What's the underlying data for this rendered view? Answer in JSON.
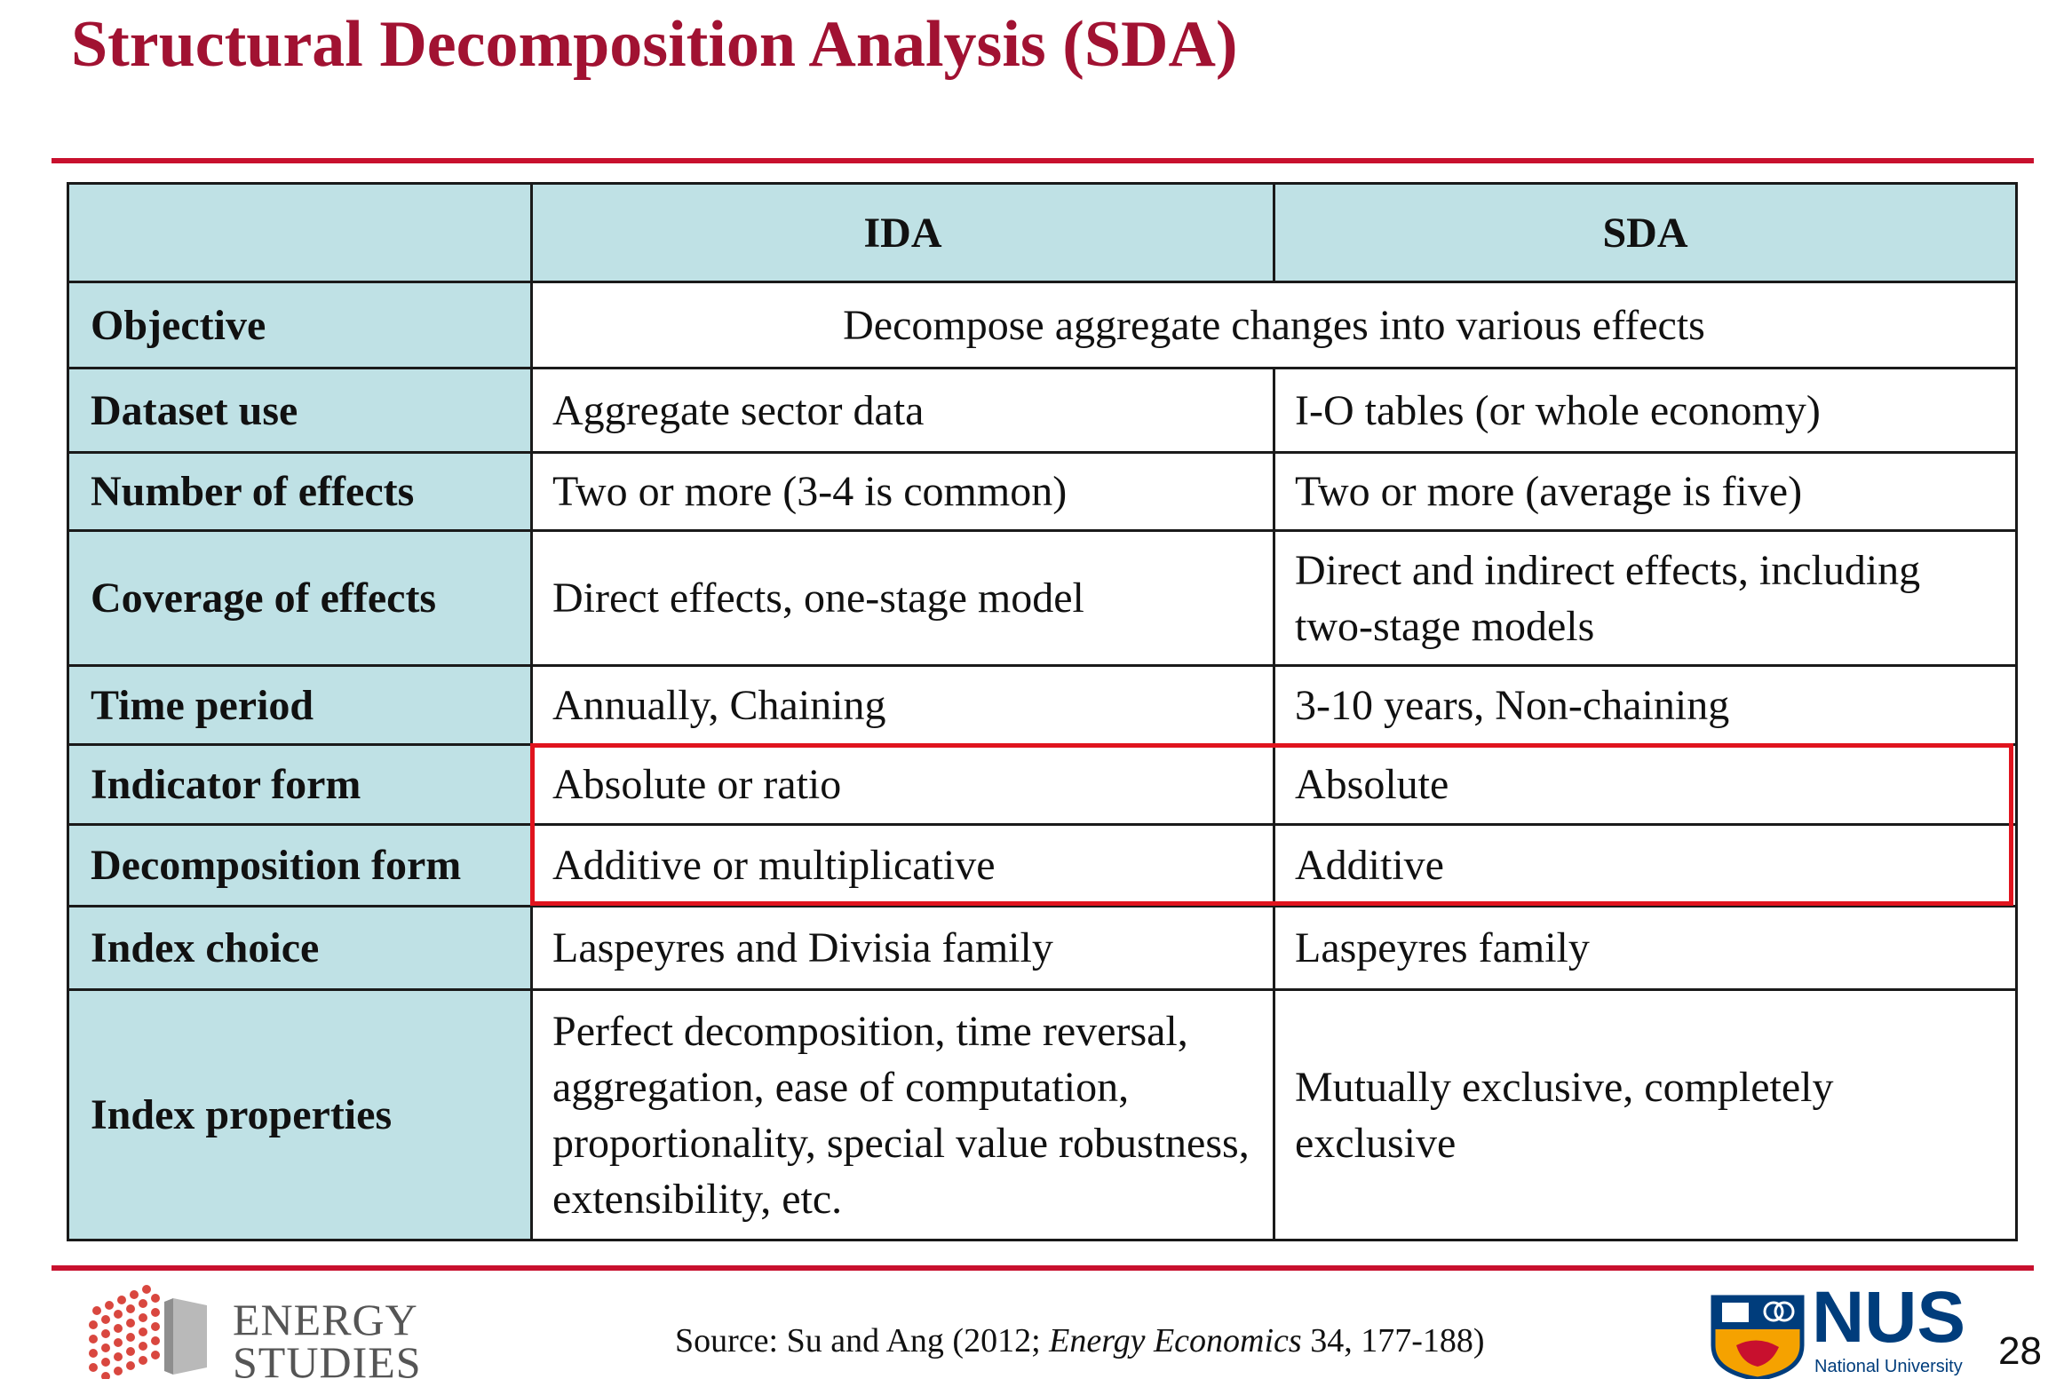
{
  "title": "Structural Decomposition Analysis (SDA)",
  "table": {
    "headers": [
      "",
      "IDA",
      "SDA"
    ],
    "objective": {
      "label": "Objective",
      "value": "Decompose aggregate changes into various effects"
    },
    "rows": [
      {
        "label": "Dataset use",
        "ida": "Aggregate sector data",
        "sda": "I-O tables (or whole economy)"
      },
      {
        "label": "Number of effects",
        "ida": "Two or more (3-4 is common)",
        "sda": "Two or more (average is five)"
      },
      {
        "label": "Coverage of effects",
        "ida": "Direct effects, one-stage model",
        "sda": "Direct and indirect effects, including two-stage models"
      },
      {
        "label": "Time period",
        "ida": "Annually, Chaining",
        "sda": "3-10 years, Non-chaining"
      },
      {
        "label": "Indicator form",
        "ida": "Absolute or ratio",
        "sda": "Absolute"
      },
      {
        "label": "Decomposition form",
        "ida": "Additive or multiplicative",
        "sda": "Additive"
      },
      {
        "label": "Index choice",
        "ida": "Laspeyres and Divisia family",
        "sda": "Laspeyres family"
      },
      {
        "label": "Index properties",
        "ida": "Perfect decomposition, time reversal, aggregation, ease of computation, proportionality, special value robustness, extensibility, etc.",
        "sda": "Mutually exclusive, completely exclusive"
      }
    ]
  },
  "highlight_color": "#e0141e",
  "footer": {
    "left_logo_text": "ENERGY STUDIES",
    "source_prefix": "Source: Su and Ang (2012; ",
    "source_journal": "Energy Economics",
    "source_suffix": " 34, 177-188)",
    "nus_logo_text": "NUS",
    "nus_subtext": "National University",
    "page_number": "28"
  },
  "colors": {
    "title": "#a11232",
    "rule": "#c8102e",
    "header_fill": "#bfe1e5",
    "nus_blue": "#003d7c"
  }
}
